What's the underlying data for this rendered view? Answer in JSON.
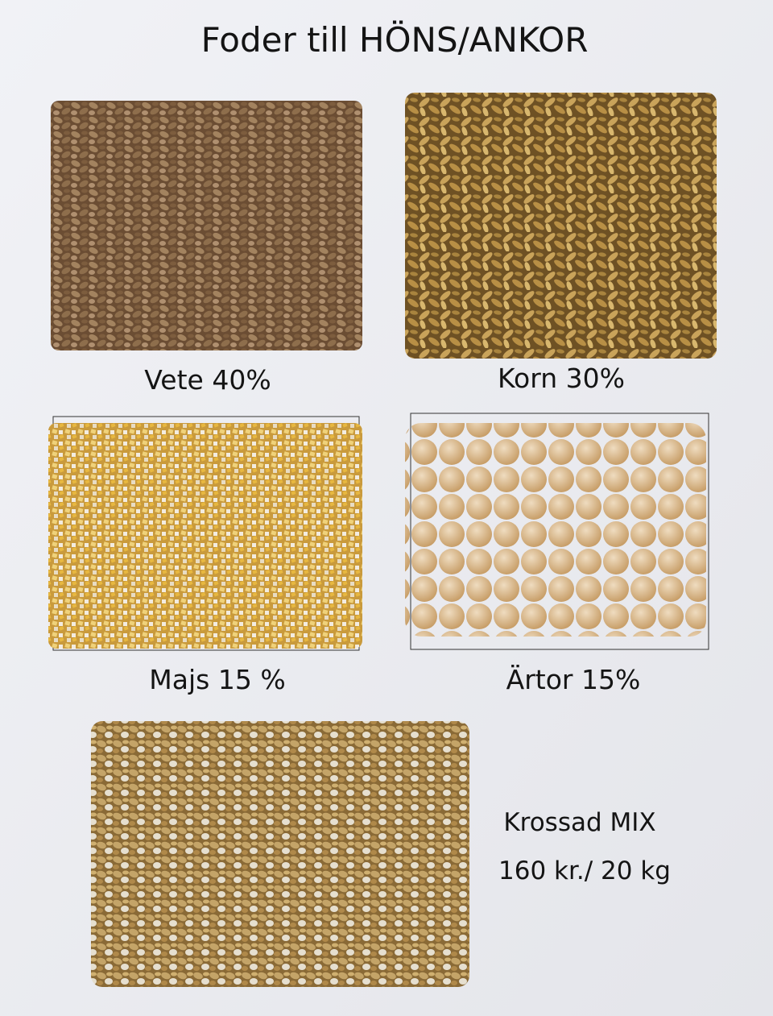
{
  "title": "Foder till HÖNS/ANKOR",
  "items": [
    {
      "label": "Vete 40%"
    },
    {
      "label": "Korn 30%"
    },
    {
      "label": "Majs 15 %"
    },
    {
      "label": "Ärtor 15%"
    }
  ],
  "mix": {
    "label": "Krossad MIX",
    "price": "160 kr./ 20 kg"
  }
}
